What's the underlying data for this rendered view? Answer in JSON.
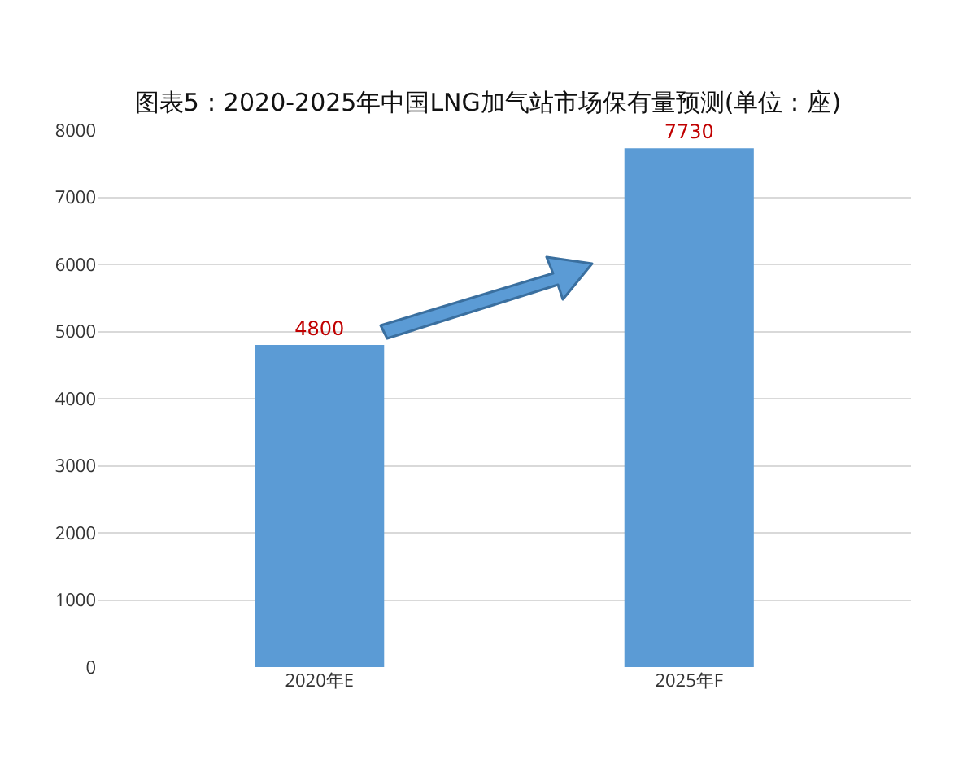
{
  "chart_data": {
    "type": "bar",
    "title": "图表5：2020-2025年中国LNG加气站市场保有量预测(单位：座)",
    "categories": [
      "2020年E",
      "2025年F"
    ],
    "values": [
      4800,
      7730
    ],
    "color": "#5b9bd5",
    "ylim": [
      0,
      8000
    ],
    "yticks": [
      0,
      1000,
      2000,
      3000,
      4000,
      5000,
      6000,
      7000,
      8000
    ],
    "grid": "y",
    "data_labels": true
  }
}
